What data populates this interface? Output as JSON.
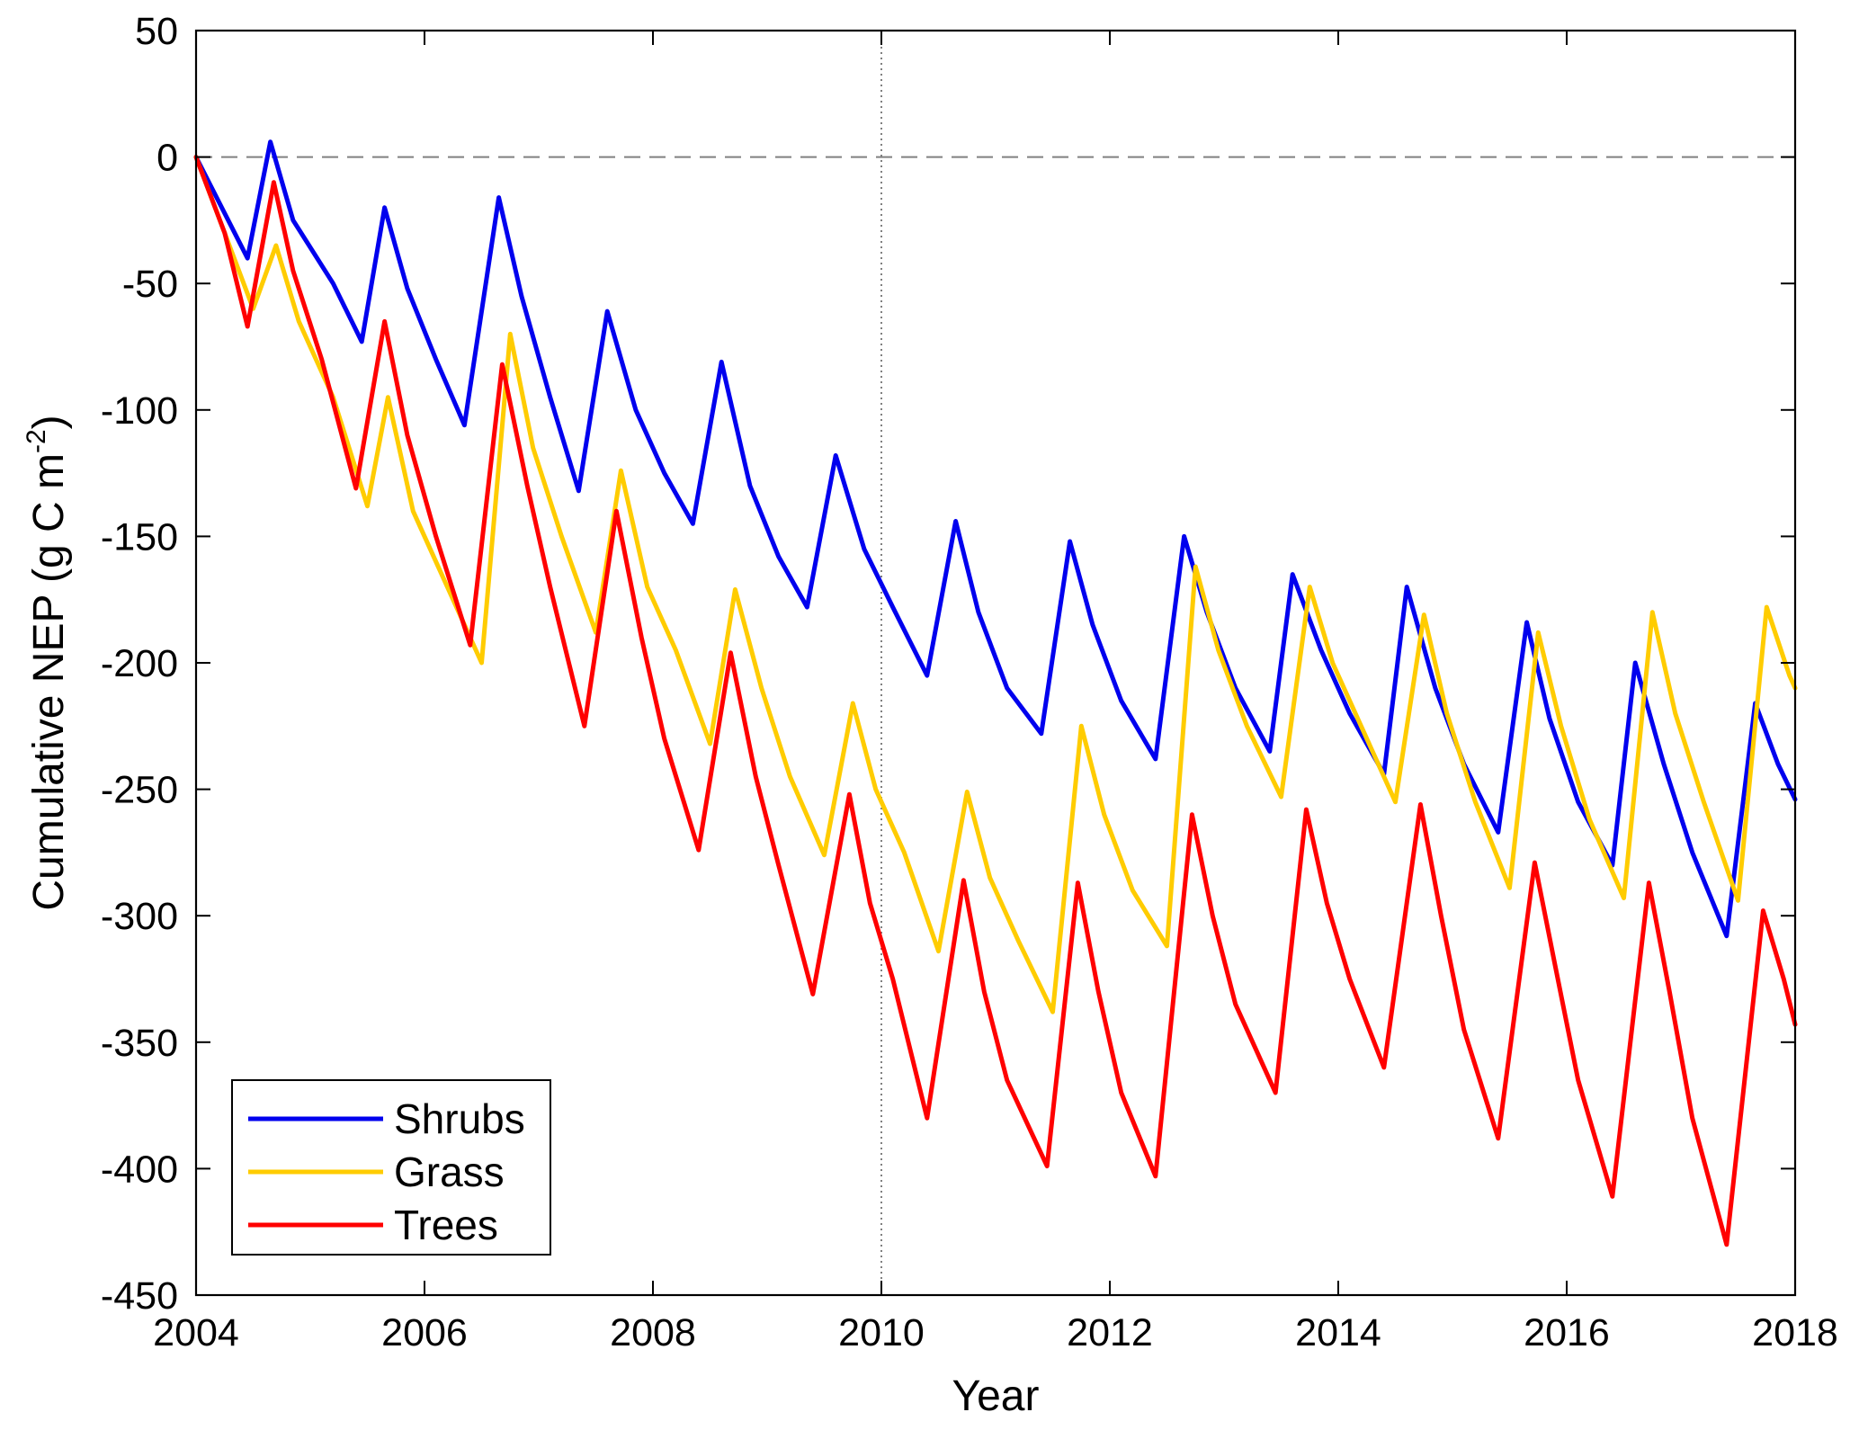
{
  "chart_data": {
    "type": "line",
    "xlabel": "Year",
    "ylabel": "Cumulative NEP (g C m",
    "ylabel_sup": "-2",
    "ylabel_end": ")",
    "xlim": [
      2004,
      2018
    ],
    "ylim": [
      -450,
      50
    ],
    "xticks": [
      2004,
      2006,
      2008,
      2010,
      2012,
      2014,
      2016,
      2018
    ],
    "yticks": [
      50,
      0,
      -50,
      -100,
      -150,
      -200,
      -250,
      -300,
      -350,
      -400,
      -450
    ],
    "reference_lines": [
      {
        "orientation": "horizontal",
        "value": 0,
        "style": "dashed",
        "color": "#808080"
      },
      {
        "orientation": "vertical",
        "value": 2010,
        "style": "dotted",
        "color": "#808080"
      }
    ],
    "grid": false,
    "legend_position": "bottom-left",
    "series": [
      {
        "name": "Shrubs",
        "color": "#0000ee",
        "points": [
          [
            2004.0,
            0
          ],
          [
            2004.45,
            -40
          ],
          [
            2004.65,
            6
          ],
          [
            2004.85,
            -25
          ],
          [
            2005.2,
            -50
          ],
          [
            2005.45,
            -73
          ],
          [
            2005.65,
            -20
          ],
          [
            2005.85,
            -52
          ],
          [
            2006.1,
            -80
          ],
          [
            2006.35,
            -106
          ],
          [
            2006.65,
            -16
          ],
          [
            2006.85,
            -55
          ],
          [
            2007.1,
            -95
          ],
          [
            2007.35,
            -132
          ],
          [
            2007.6,
            -61
          ],
          [
            2007.85,
            -100
          ],
          [
            2008.1,
            -125
          ],
          [
            2008.35,
            -145
          ],
          [
            2008.6,
            -81
          ],
          [
            2008.85,
            -130
          ],
          [
            2009.1,
            -158
          ],
          [
            2009.35,
            -178
          ],
          [
            2009.6,
            -118
          ],
          [
            2009.85,
            -155
          ],
          [
            2010.1,
            -178
          ],
          [
            2010.4,
            -205
          ],
          [
            2010.65,
            -144
          ],
          [
            2010.85,
            -180
          ],
          [
            2011.1,
            -210
          ],
          [
            2011.4,
            -228
          ],
          [
            2011.65,
            -152
          ],
          [
            2011.85,
            -185
          ],
          [
            2012.1,
            -215
          ],
          [
            2012.4,
            -238
          ],
          [
            2012.65,
            -150
          ],
          [
            2012.85,
            -180
          ],
          [
            2013.1,
            -210
          ],
          [
            2013.4,
            -235
          ],
          [
            2013.6,
            -165
          ],
          [
            2013.85,
            -195
          ],
          [
            2014.1,
            -220
          ],
          [
            2014.4,
            -244
          ],
          [
            2014.6,
            -170
          ],
          [
            2014.85,
            -210
          ],
          [
            2015.1,
            -240
          ],
          [
            2015.4,
            -267
          ],
          [
            2015.65,
            -184
          ],
          [
            2015.85,
            -222
          ],
          [
            2016.1,
            -255
          ],
          [
            2016.4,
            -280
          ],
          [
            2016.6,
            -200
          ],
          [
            2016.85,
            -240
          ],
          [
            2017.1,
            -275
          ],
          [
            2017.4,
            -308
          ],
          [
            2017.65,
            -216
          ],
          [
            2017.85,
            -240
          ],
          [
            2018.0,
            -254
          ]
        ]
      },
      {
        "name": "Grass",
        "color": "#ffcc00",
        "points": [
          [
            2004.0,
            0
          ],
          [
            2004.5,
            -60
          ],
          [
            2004.7,
            -35
          ],
          [
            2004.9,
            -65
          ],
          [
            2005.2,
            -95
          ],
          [
            2005.5,
            -138
          ],
          [
            2005.68,
            -95
          ],
          [
            2005.9,
            -140
          ],
          [
            2006.2,
            -170
          ],
          [
            2006.5,
            -200
          ],
          [
            2006.75,
            -70
          ],
          [
            2006.95,
            -115
          ],
          [
            2007.2,
            -150
          ],
          [
            2007.5,
            -188
          ],
          [
            2007.72,
            -124
          ],
          [
            2007.95,
            -170
          ],
          [
            2008.2,
            -195
          ],
          [
            2008.5,
            -232
          ],
          [
            2008.72,
            -171
          ],
          [
            2008.95,
            -210
          ],
          [
            2009.2,
            -245
          ],
          [
            2009.5,
            -276
          ],
          [
            2009.75,
            -216
          ],
          [
            2009.95,
            -250
          ],
          [
            2010.2,
            -275
          ],
          [
            2010.5,
            -314
          ],
          [
            2010.75,
            -251
          ],
          [
            2010.95,
            -285
          ],
          [
            2011.2,
            -310
          ],
          [
            2011.5,
            -338
          ],
          [
            2011.75,
            -225
          ],
          [
            2011.95,
            -260
          ],
          [
            2012.2,
            -290
          ],
          [
            2012.5,
            -312
          ],
          [
            2012.75,
            -162
          ],
          [
            2012.95,
            -195
          ],
          [
            2013.2,
            -225
          ],
          [
            2013.5,
            -253
          ],
          [
            2013.75,
            -170
          ],
          [
            2013.95,
            -200
          ],
          [
            2014.2,
            -225
          ],
          [
            2014.5,
            -255
          ],
          [
            2014.75,
            -181
          ],
          [
            2014.95,
            -220
          ],
          [
            2015.2,
            -255
          ],
          [
            2015.5,
            -289
          ],
          [
            2015.75,
            -188
          ],
          [
            2015.95,
            -225
          ],
          [
            2016.2,
            -262
          ],
          [
            2016.5,
            -293
          ],
          [
            2016.75,
            -180
          ],
          [
            2016.95,
            -220
          ],
          [
            2017.2,
            -255
          ],
          [
            2017.5,
            -294
          ],
          [
            2017.75,
            -178
          ],
          [
            2017.95,
            -205
          ],
          [
            2018.0,
            -210
          ]
        ]
      },
      {
        "name": "Trees",
        "color": "#ff0000",
        "points": [
          [
            2004.0,
            0
          ],
          [
            2004.25,
            -30
          ],
          [
            2004.45,
            -67
          ],
          [
            2004.68,
            -10
          ],
          [
            2004.85,
            -45
          ],
          [
            2005.1,
            -80
          ],
          [
            2005.4,
            -131
          ],
          [
            2005.65,
            -65
          ],
          [
            2005.85,
            -110
          ],
          [
            2006.1,
            -150
          ],
          [
            2006.4,
            -193
          ],
          [
            2006.68,
            -82
          ],
          [
            2006.9,
            -130
          ],
          [
            2007.1,
            -170
          ],
          [
            2007.4,
            -225
          ],
          [
            2007.68,
            -140
          ],
          [
            2007.9,
            -190
          ],
          [
            2008.1,
            -230
          ],
          [
            2008.4,
            -274
          ],
          [
            2008.68,
            -196
          ],
          [
            2008.9,
            -245
          ],
          [
            2009.1,
            -280
          ],
          [
            2009.4,
            -331
          ],
          [
            2009.72,
            -252
          ],
          [
            2009.9,
            -295
          ],
          [
            2010.1,
            -325
          ],
          [
            2010.4,
            -380
          ],
          [
            2010.72,
            -286
          ],
          [
            2010.9,
            -330
          ],
          [
            2011.1,
            -365
          ],
          [
            2011.45,
            -399
          ],
          [
            2011.72,
            -287
          ],
          [
            2011.9,
            -330
          ],
          [
            2012.1,
            -370
          ],
          [
            2012.4,
            -403
          ],
          [
            2012.72,
            -260
          ],
          [
            2012.9,
            -300
          ],
          [
            2013.1,
            -335
          ],
          [
            2013.45,
            -370
          ],
          [
            2013.72,
            -258
          ],
          [
            2013.9,
            -295
          ],
          [
            2014.1,
            -325
          ],
          [
            2014.4,
            -360
          ],
          [
            2014.72,
            -256
          ],
          [
            2014.9,
            -300
          ],
          [
            2015.1,
            -345
          ],
          [
            2015.4,
            -388
          ],
          [
            2015.72,
            -279
          ],
          [
            2015.9,
            -320
          ],
          [
            2016.1,
            -365
          ],
          [
            2016.4,
            -411
          ],
          [
            2016.72,
            -287
          ],
          [
            2016.9,
            -330
          ],
          [
            2017.1,
            -380
          ],
          [
            2017.4,
            -430
          ],
          [
            2017.72,
            -298
          ],
          [
            2017.9,
            -325
          ],
          [
            2018.0,
            -343
          ]
        ]
      }
    ]
  }
}
